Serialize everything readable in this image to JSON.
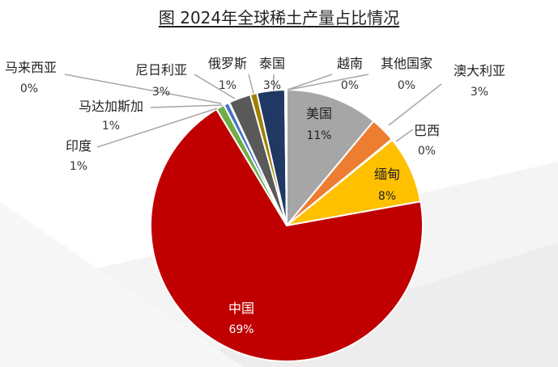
{
  "chart_data": {
    "type": "pie",
    "title": "图 2024年全球稀土产量占比情况",
    "slices": [
      {
        "name": "美国",
        "value": 11,
        "label": "11%",
        "color": "#a6a6a6"
      },
      {
        "name": "澳大利亚",
        "value": 3,
        "label": "3%",
        "color": "#ed7d31"
      },
      {
        "name": "巴西",
        "value": 0.1,
        "label": "0%",
        "color": "#ffffff"
      },
      {
        "name": "缅甸",
        "value": 8,
        "label": "8%",
        "color": "#ffc000"
      },
      {
        "name": "中国",
        "value": 69,
        "label": "69%",
        "color": "#c00000"
      },
      {
        "name": "印度",
        "value": 1,
        "label": "1%",
        "color": "#70ad47"
      },
      {
        "name": "马达加斯加",
        "value": 0.6,
        "label": "1%",
        "color": "#4472c4"
      },
      {
        "name": "马来西亚",
        "value": 0.1,
        "label": "0%",
        "color": "#d9d9d9"
      },
      {
        "name": "尼日利亚",
        "value": 2.6,
        "label": "3%",
        "color": "#595959"
      },
      {
        "name": "俄罗斯",
        "value": 0.8,
        "label": "1%",
        "color": "#a08000"
      },
      {
        "name": "泰国",
        "value": 3.3,
        "label": "3%",
        "color": "#1f3864"
      },
      {
        "name": "越南",
        "value": 0.1,
        "label": "0%",
        "color": "#e7e6e6"
      },
      {
        "name": "其他国家",
        "value": 0.1,
        "label": "0%",
        "color": "#ffffff"
      }
    ]
  }
}
